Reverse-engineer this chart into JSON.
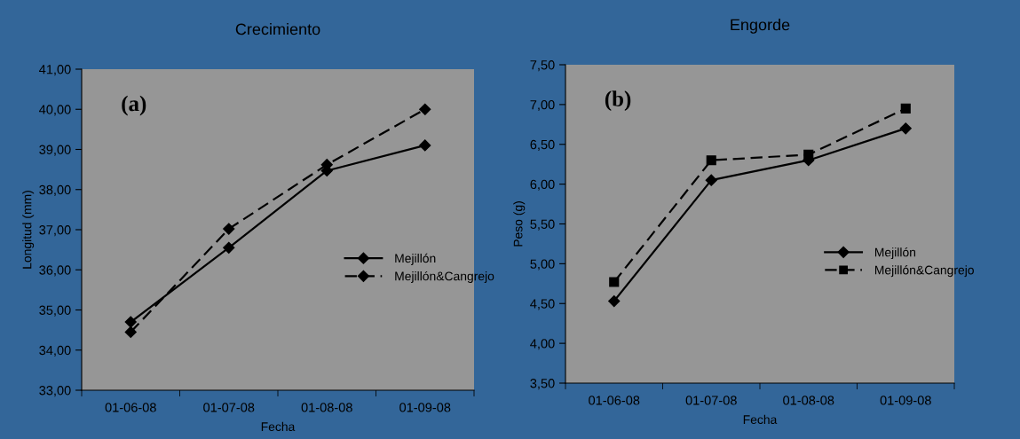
{
  "chart_data": [
    {
      "type": "line",
      "title": "Crecimiento",
      "xlabel": "Fecha",
      "ylabel": "Longitud (mm)",
      "categories": [
        "01-06-08",
        "01-07-08",
        "01-08-08",
        "01-09-08"
      ],
      "series": [
        {
          "name": "Mejillón",
          "color": "#000000",
          "values": [
            34.7,
            36.55,
            38.47,
            39.1
          ],
          "marker": "diamond",
          "line_style": "solid"
        },
        {
          "name": "Mejillón&Cangrejo",
          "color": "#000000",
          "values": [
            34.45,
            37.02,
            38.62,
            40.0
          ],
          "marker": "diamond",
          "line_style": "dashed"
        }
      ],
      "ylim": [
        33,
        41
      ],
      "yticks": [
        {
          "value": 33,
          "label": "33,00"
        },
        {
          "value": 34,
          "label": "34,00"
        },
        {
          "value": 35,
          "label": "35,00"
        },
        {
          "value": 36,
          "label": "36,00"
        },
        {
          "value": 37,
          "label": "37,00"
        },
        {
          "value": 38,
          "label": "38,00"
        },
        {
          "value": 39,
          "label": "39,00"
        },
        {
          "value": 40,
          "label": "40,00"
        },
        {
          "value": 41,
          "label": "41,00"
        }
      ],
      "annotations": [
        "(a)"
      ],
      "grid": false,
      "legend": "right"
    },
    {
      "type": "line",
      "title": "Engorde",
      "xlabel": "Fecha",
      "ylabel": "Peso (g)",
      "categories": [
        "01-06-08",
        "01-07-08",
        "01-08-08",
        "01-09-08"
      ],
      "series": [
        {
          "name": "Mejillón",
          "color": "#000000",
          "values": [
            4.53,
            6.05,
            6.3,
            6.7
          ],
          "marker": "diamond",
          "line_style": "solid"
        },
        {
          "name": "Mejillón&Cangrejo",
          "color": "#000000",
          "values": [
            4.77,
            6.3,
            6.37,
            6.95
          ],
          "marker": "square",
          "line_style": "dashed"
        }
      ],
      "ylim": [
        3.5,
        7.5
      ],
      "yticks": [
        {
          "value": 3.5,
          "label": "3,50"
        },
        {
          "value": 4,
          "label": "4,00"
        },
        {
          "value": 4.5,
          "label": "4,50"
        },
        {
          "value": 5,
          "label": "5,00"
        },
        {
          "value": 5.5,
          "label": "5,50"
        },
        {
          "value": 6,
          "label": "6,00"
        },
        {
          "value": 6.5,
          "label": "6,50"
        },
        {
          "value": 7,
          "label": "7,00"
        },
        {
          "value": 7.5,
          "label": "7,50"
        }
      ],
      "annotations": [
        "(b)"
      ],
      "grid": false,
      "legend": "right"
    }
  ]
}
